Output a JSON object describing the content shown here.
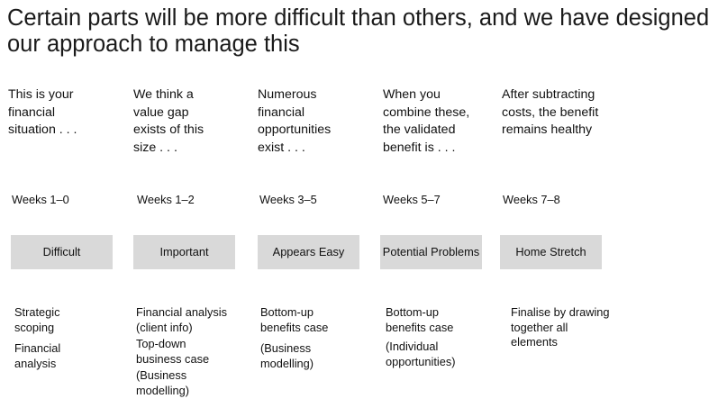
{
  "slide": {
    "title": "Certain parts will be more difficult than others, and we have designed our approach to manage this"
  },
  "columns": [
    {
      "intro": "This is your financial situation . . .",
      "weeks": "Weeks 1–0",
      "phase": "Difficult",
      "activities": [
        "Strategic scoping",
        "Financial analysis"
      ]
    },
    {
      "intro": "We think a value gap exists of this size . . .",
      "weeks": "Weeks 1–2",
      "phase": "Important",
      "activities": [
        "Financial analysis (client info)",
        "Top-down business case",
        "(Business modelling)"
      ]
    },
    {
      "intro": "Numerous financial opportunities exist . . .",
      "weeks": "Weeks 3–5",
      "phase": "Appears Easy",
      "activities": [
        "Bottom-up benefits case",
        "(Business modelling)"
      ]
    },
    {
      "intro": "When you combine these, the validated benefit is . . .",
      "weeks": "Weeks 5–7",
      "phase": "Potential Problems",
      "activities": [
        "Bottom-up benefits case",
        "(Individual opportunities)"
      ]
    },
    {
      "intro": "After subtracting costs, the benefit remains healthy",
      "weeks": "Weeks 7–8",
      "phase": "Home Stretch",
      "activities": [
        "Finalise by drawing together all elements"
      ]
    }
  ],
  "colors": {
    "phase_box": "#d9d9d9",
    "text": "#111111"
  }
}
